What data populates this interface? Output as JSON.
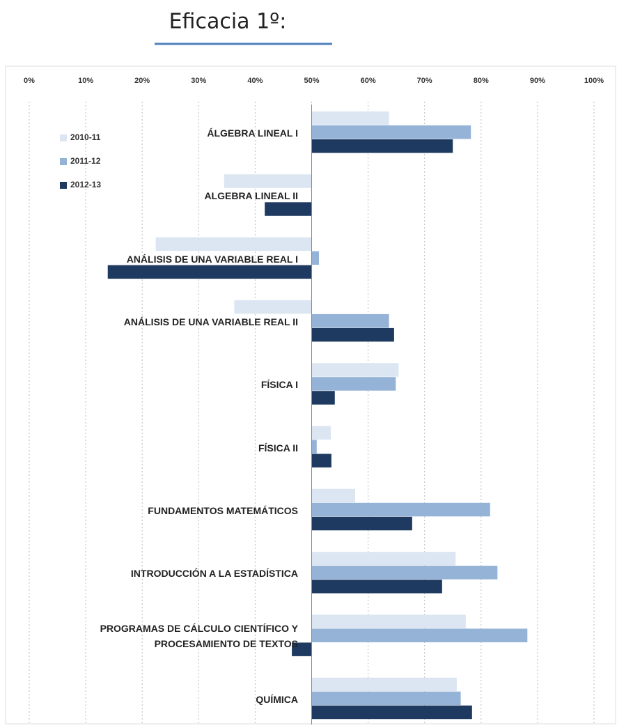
{
  "chart_data": {
    "type": "bar",
    "orientation": "horizontal",
    "title": "Eficacia 1º:",
    "categories": [
      "ÁLGEBRA LINEAL I",
      "ALGEBRA LINEAL II",
      "ANÁLISIS DE UNA VARIABLE REAL I",
      "ANÁLISIS DE  UNA VARIABLE REAL II",
      "FÍSICA I",
      "FÍSICA II",
      "FUNDAMENTOS MATEMÁTICOS",
      "INTRODUCCIÓN A LA ESTADÍSTICA",
      "PROGRAMAS DE CÁLCULO CIENTÍFICO Y\nPROCESAMIENTO DE TEXTOS",
      "QUÍMICA"
    ],
    "series": [
      {
        "name": "2010-11",
        "color": "#dce6f2",
        "values": [
          63.7,
          34.5,
          22.4,
          36.3,
          65.4,
          53.4,
          57.7,
          75.5,
          77.3,
          75.7
        ]
      },
      {
        "name": "2011-12",
        "color": "#95b3d7",
        "values": [
          78.2,
          50,
          51.3,
          63.7,
          64.9,
          50.9,
          81.6,
          82.9,
          88.2,
          76.4
        ]
      },
      {
        "name": "2012-13",
        "color": "#1f3a60",
        "values": [
          75,
          41.7,
          13.9,
          64.6,
          54.1,
          53.5,
          67.8,
          73.1,
          46.5,
          78.4
        ]
      }
    ],
    "xlim": [
      0,
      100
    ],
    "baseline": 50,
    "xticks": [
      {
        "value": 0,
        "label": "0%"
      },
      {
        "value": 10,
        "label": "10%"
      },
      {
        "value": 20,
        "label": "20%"
      },
      {
        "value": 30,
        "label": "30%"
      },
      {
        "value": 40,
        "label": "40%"
      },
      {
        "value": 50,
        "label": "50%"
      },
      {
        "value": 60,
        "label": "60%"
      },
      {
        "value": 70,
        "label": "70%"
      },
      {
        "value": 80,
        "label": "80%"
      },
      {
        "value": 90,
        "label": "90%"
      },
      {
        "value": 100,
        "label": "100%"
      }
    ],
    "grid": true,
    "legend": "top-left"
  }
}
